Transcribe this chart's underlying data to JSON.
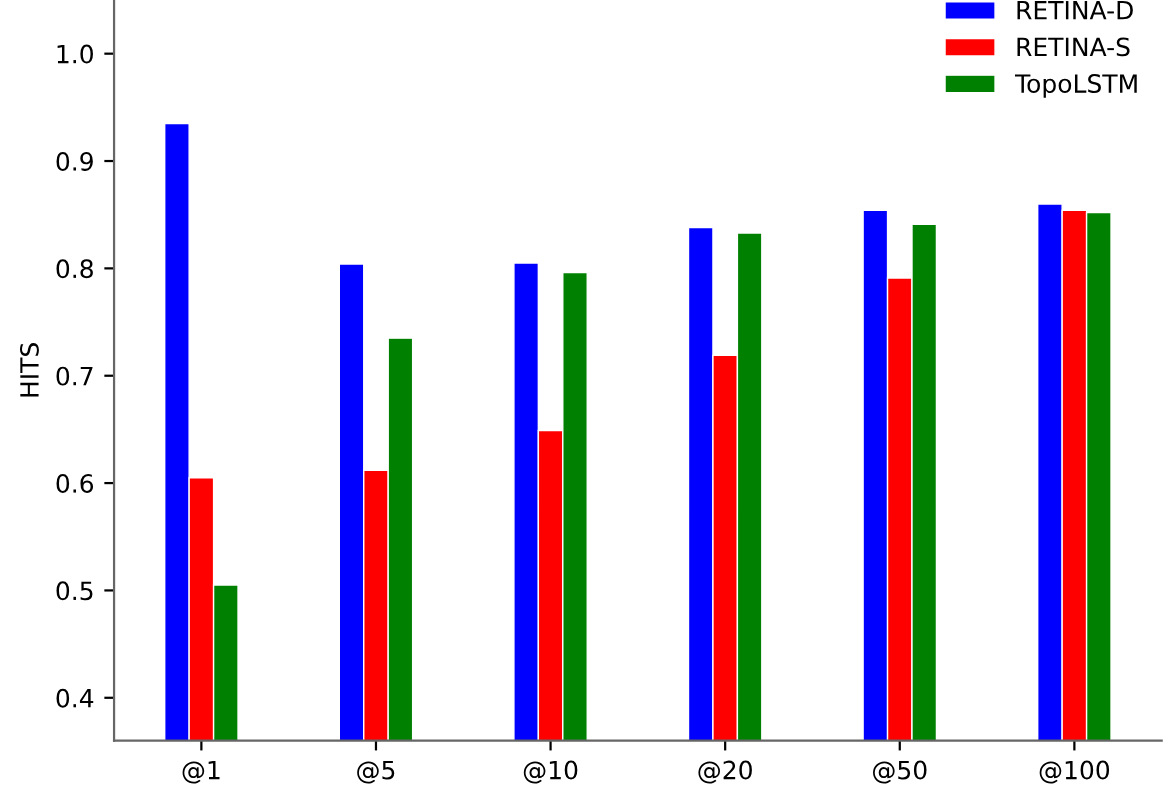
{
  "chart_data": {
    "type": "bar",
    "ylabel": "HITS",
    "categories": [
      "@1",
      "@5",
      "@10",
      "@20",
      "@50",
      "@100"
    ],
    "series": [
      {
        "name": "RETINA-D",
        "color": "#0000ff",
        "values": [
          0.935,
          0.804,
          0.805,
          0.838,
          0.854,
          0.86
        ]
      },
      {
        "name": "RETINA-S",
        "color": "#ff0000",
        "values": [
          0.605,
          0.612,
          0.649,
          0.719,
          0.791,
          0.854
        ]
      },
      {
        "name": "TopoLSTM",
        "color": "#008000",
        "values": [
          0.505,
          0.735,
          0.796,
          0.833,
          0.841,
          0.852
        ]
      }
    ],
    "ylim": [
      0.36,
      1.05
    ],
    "yticks": [
      0.4,
      0.5,
      0.6,
      0.7,
      0.8,
      0.9,
      {
        "value": 1.0,
        "label": "1.0"
      }
    ],
    "legend": "top right",
    "grid": false
  }
}
